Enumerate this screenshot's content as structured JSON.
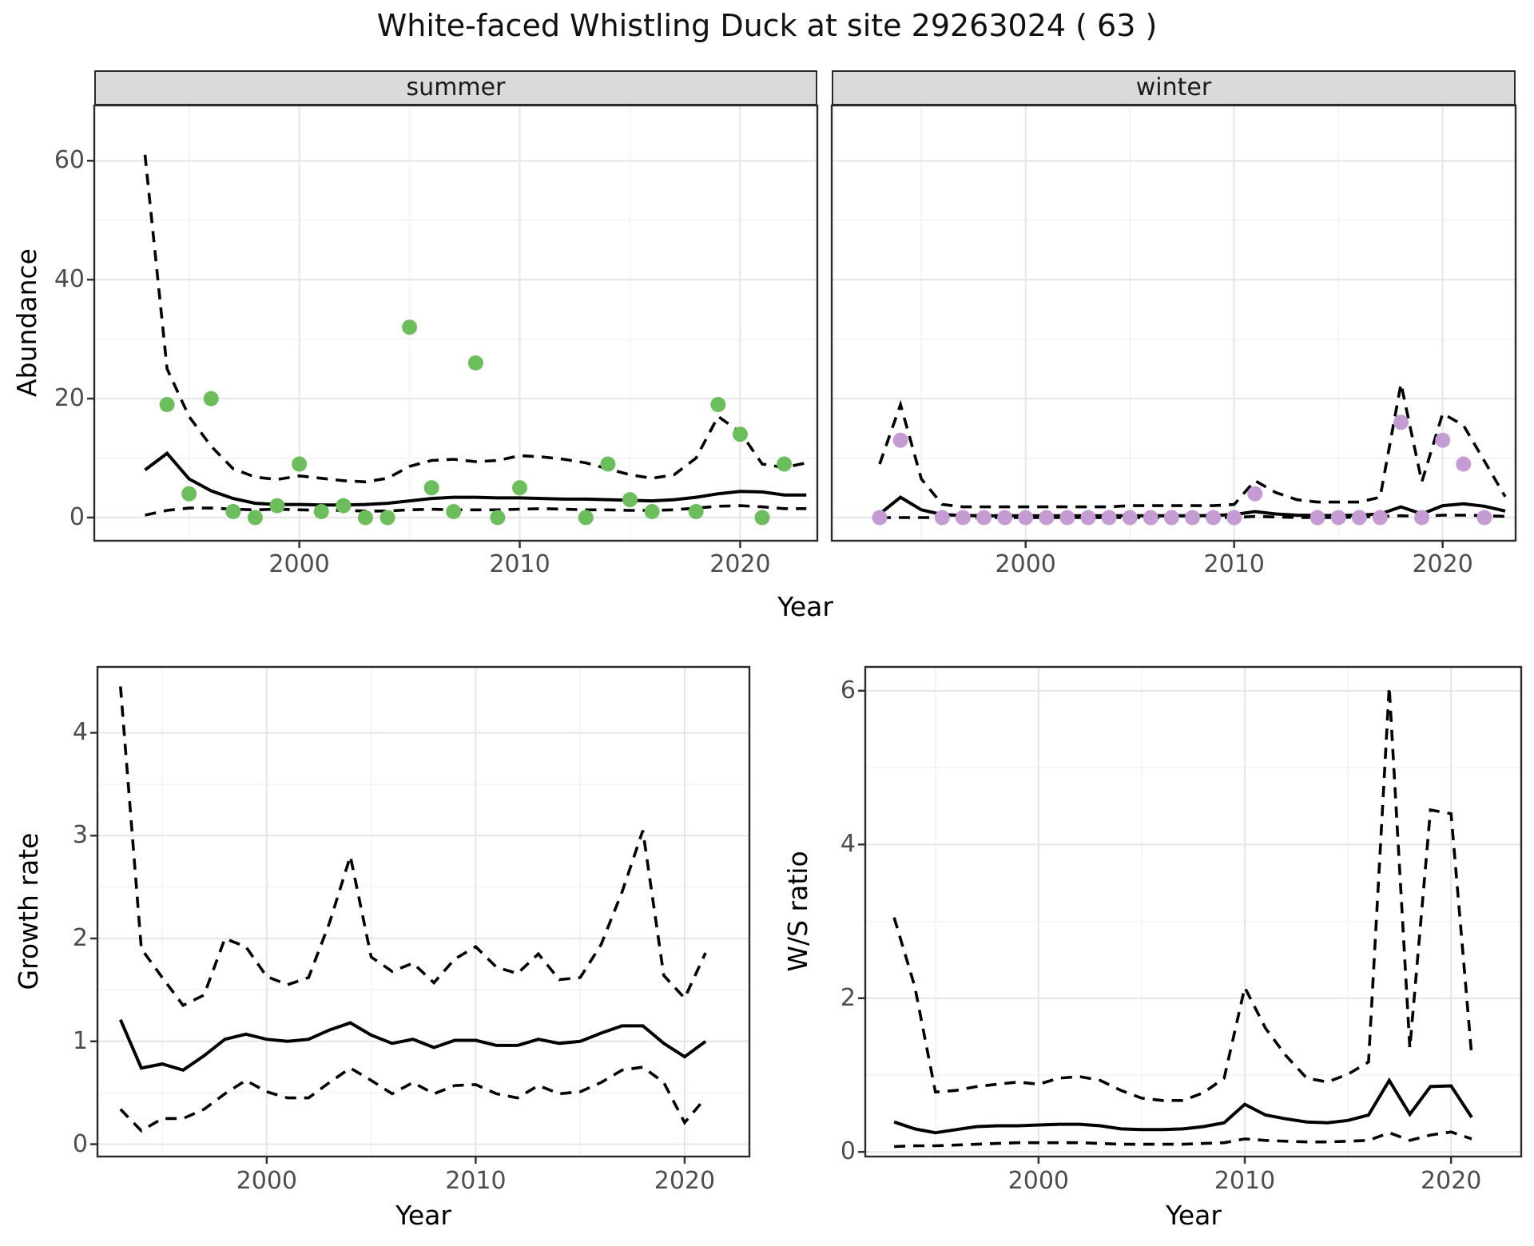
{
  "title": "White-faced Whistling Duck at site 29263024 ( 63 )",
  "top_row_xlabel": "Year",
  "colors": {
    "summer_point": "#6cbd5b",
    "winter_point": "#c49bd3",
    "line": "#000000",
    "grid_major": "#e7e7e7",
    "grid_minor": "#f2f2f2",
    "panel_border": "#2b2b2b",
    "strip_background": "#dadada",
    "tick_label": "#4d4d4d"
  },
  "chart_data": [
    {
      "id": "abundance-summer",
      "type": "scatter",
      "facet_label": "summer",
      "ylabel": "Abundance",
      "xlabel": "Year",
      "xlim": [
        1990.7,
        2023.5
      ],
      "ylim": [
        -3.9,
        69.3
      ],
      "xticks": [
        2000,
        2010,
        2020
      ],
      "yticks": [
        0,
        20,
        40,
        60
      ],
      "xminor": [
        1995,
        2005,
        2015
      ],
      "yminor": [
        10,
        30,
        50
      ],
      "grid": true,
      "legend": "none",
      "point_color": "#6cbd5b",
      "observed_points": [
        [
          1994,
          19
        ],
        [
          1995,
          4
        ],
        [
          1996,
          20
        ],
        [
          1997,
          1
        ],
        [
          1998,
          0
        ],
        [
          1999,
          2
        ],
        [
          2000,
          9
        ],
        [
          2001,
          1
        ],
        [
          2002,
          2
        ],
        [
          2003,
          0
        ],
        [
          2004,
          0
        ],
        [
          2005,
          32
        ],
        [
          2006,
          5
        ],
        [
          2007,
          1
        ],
        [
          2008,
          26
        ],
        [
          2009,
          0
        ],
        [
          2010,
          5
        ],
        [
          2013,
          0
        ],
        [
          2014,
          9
        ],
        [
          2015,
          3
        ],
        [
          2016,
          1
        ],
        [
          2018,
          1
        ],
        [
          2019,
          19
        ],
        [
          2020,
          14
        ],
        [
          2021,
          0
        ],
        [
          2022,
          9
        ]
      ],
      "line_years": [
        1993,
        1994,
        1995,
        1996,
        1997,
        1998,
        1999,
        2000,
        2001,
        2002,
        2003,
        2004,
        2005,
        2006,
        2007,
        2008,
        2009,
        2010,
        2011,
        2012,
        2013,
        2014,
        2015,
        2016,
        2017,
        2018,
        2019,
        2020,
        2021,
        2022,
        2023
      ],
      "series": [
        {
          "name": "mean",
          "style": "solid",
          "values": [
            8.0,
            10.8,
            6.5,
            4.5,
            3.2,
            2.4,
            2.2,
            2.2,
            2.1,
            2.1,
            2.2,
            2.4,
            2.8,
            3.2,
            3.4,
            3.4,
            3.3,
            3.3,
            3.2,
            3.1,
            3.1,
            3.0,
            2.9,
            2.8,
            3.0,
            3.4,
            4.0,
            4.4,
            4.3,
            3.8,
            3.8
          ]
        },
        {
          "name": "upper_ci",
          "style": "dashed",
          "values": [
            61,
            25,
            17,
            12,
            8.2,
            6.8,
            6.4,
            7.0,
            6.6,
            6.2,
            6.0,
            6.6,
            8.6,
            9.6,
            9.8,
            9.4,
            9.6,
            10.4,
            10.2,
            9.8,
            9.2,
            8.2,
            7.2,
            6.6,
            7.2,
            10.0,
            17.0,
            14.4,
            9.0,
            8.4,
            9.2
          ]
        },
        {
          "name": "lower_ci",
          "style": "dashed",
          "values": [
            0.4,
            1.2,
            1.6,
            1.6,
            1.4,
            1.3,
            1.4,
            1.3,
            1.2,
            1.2,
            1.1,
            1.1,
            1.3,
            1.4,
            1.3,
            1.3,
            1.3,
            1.4,
            1.5,
            1.4,
            1.3,
            1.3,
            1.2,
            1.2,
            1.3,
            1.6,
            1.9,
            2.0,
            1.8,
            1.5,
            1.5
          ]
        }
      ]
    },
    {
      "id": "abundance-winter",
      "type": "scatter",
      "facet_label": "winter",
      "ylabel": "Abundance",
      "xlabel": "Year",
      "xlim": [
        1990.7,
        2023.5
      ],
      "ylim": [
        -3.9,
        69.3
      ],
      "xticks": [
        2000,
        2010,
        2020
      ],
      "yticks": [
        0,
        20,
        40,
        60
      ],
      "xminor": [
        1995,
        2005,
        2015
      ],
      "yminor": [
        10,
        30,
        50
      ],
      "grid": true,
      "legend": "none",
      "point_color": "#c49bd3",
      "observed_points": [
        [
          1993,
          0
        ],
        [
          1994,
          13
        ],
        [
          1996,
          0
        ],
        [
          1997,
          0
        ],
        [
          1998,
          0
        ],
        [
          1999,
          0
        ],
        [
          2000,
          0
        ],
        [
          2001,
          0
        ],
        [
          2002,
          0
        ],
        [
          2003,
          0
        ],
        [
          2004,
          0
        ],
        [
          2005,
          0
        ],
        [
          2006,
          0
        ],
        [
          2007,
          0
        ],
        [
          2008,
          0
        ],
        [
          2009,
          0
        ],
        [
          2010,
          0
        ],
        [
          2011,
          4
        ],
        [
          2014,
          0
        ],
        [
          2015,
          0
        ],
        [
          2016,
          0
        ],
        [
          2017,
          0
        ],
        [
          2018,
          16
        ],
        [
          2019,
          0
        ],
        [
          2020,
          13
        ],
        [
          2021,
          9
        ],
        [
          2022,
          0
        ]
      ],
      "line_years": [
        1993,
        1994,
        1995,
        1996,
        1997,
        1998,
        1999,
        2000,
        2001,
        2002,
        2003,
        2004,
        2005,
        2006,
        2007,
        2008,
        2009,
        2010,
        2011,
        2012,
        2013,
        2014,
        2015,
        2016,
        2017,
        2018,
        2019,
        2020,
        2021,
        2022,
        2023
      ],
      "series": [
        {
          "name": "mean",
          "style": "solid",
          "values": [
            0.6,
            3.4,
            1.3,
            0.5,
            0.35,
            0.3,
            0.3,
            0.3,
            0.3,
            0.3,
            0.3,
            0.3,
            0.3,
            0.3,
            0.3,
            0.3,
            0.35,
            0.5,
            1.0,
            0.6,
            0.4,
            0.35,
            0.35,
            0.4,
            0.6,
            1.8,
            0.6,
            2.0,
            2.3,
            1.9,
            1.1
          ]
        },
        {
          "name": "upper_ci",
          "style": "dashed",
          "values": [
            9.0,
            19.0,
            6.5,
            2.2,
            1.8,
            1.8,
            1.8,
            1.8,
            1.8,
            1.8,
            1.8,
            1.8,
            2.0,
            2.0,
            2.0,
            2.0,
            2.0,
            2.2,
            6.2,
            4.2,
            3.0,
            2.6,
            2.6,
            2.6,
            3.4,
            22.5,
            6.0,
            17.5,
            15.5,
            9.5,
            3.5
          ]
        },
        {
          "name": "lower_ci",
          "style": "dashed",
          "values": [
            0,
            0,
            0,
            0,
            0,
            0,
            0,
            0,
            0,
            0,
            0,
            0,
            0,
            0,
            0,
            0,
            0,
            0,
            0.2,
            0.1,
            0,
            0,
            0,
            0.1,
            0.2,
            0.3,
            0.2,
            0.4,
            0.4,
            0.3,
            0.2
          ]
        }
      ]
    },
    {
      "id": "growth-rate",
      "type": "line",
      "facet_label": "",
      "ylabel": "Growth rate",
      "xlabel": "Year",
      "xlim": [
        1991.9,
        2023.1
      ],
      "ylim": [
        -0.12,
        4.64
      ],
      "xticks": [
        2000,
        2010,
        2020
      ],
      "yticks": [
        0,
        1,
        2,
        3,
        4
      ],
      "xminor": [
        1995,
        2005,
        2015
      ],
      "yminor": [
        0.5,
        1.5,
        2.5,
        3.5
      ],
      "grid": true,
      "legend": "none",
      "observed_points": [],
      "line_years": [
        1993,
        1994,
        1995,
        1996,
        1997,
        1998,
        1999,
        2000,
        2001,
        2002,
        2003,
        2004,
        2005,
        2006,
        2007,
        2008,
        2009,
        2010,
        2011,
        2012,
        2013,
        2014,
        2015,
        2016,
        2017,
        2018,
        2019,
        2020,
        2021
      ],
      "series": [
        {
          "name": "mean",
          "style": "solid",
          "values": [
            1.21,
            0.74,
            0.78,
            0.72,
            0.86,
            1.02,
            1.07,
            1.02,
            1.0,
            1.02,
            1.11,
            1.18,
            1.06,
            0.98,
            1.02,
            0.94,
            1.01,
            1.01,
            0.96,
            0.96,
            1.02,
            0.98,
            1.0,
            1.08,
            1.15,
            1.15,
            0.98,
            0.85,
            1.0
          ]
        },
        {
          "name": "upper_ci",
          "style": "dashed",
          "values": [
            4.45,
            1.9,
            1.62,
            1.35,
            1.45,
            2.0,
            1.92,
            1.63,
            1.55,
            1.62,
            2.15,
            2.8,
            1.82,
            1.68,
            1.76,
            1.57,
            1.8,
            1.92,
            1.72,
            1.66,
            1.85,
            1.6,
            1.62,
            1.94,
            2.45,
            3.05,
            1.64,
            1.42,
            1.86
          ]
        },
        {
          "name": "lower_ci",
          "style": "dashed",
          "values": [
            0.34,
            0.13,
            0.25,
            0.25,
            0.34,
            0.49,
            0.62,
            0.51,
            0.45,
            0.45,
            0.6,
            0.74,
            0.62,
            0.49,
            0.6,
            0.49,
            0.57,
            0.58,
            0.49,
            0.45,
            0.57,
            0.49,
            0.51,
            0.6,
            0.72,
            0.75,
            0.6,
            0.21,
            0.45
          ]
        }
      ]
    },
    {
      "id": "ws-ratio",
      "type": "line",
      "facet_label": "",
      "ylabel": "W/S ratio",
      "xlabel": "Year",
      "xlim": [
        1991.6,
        2023.4
      ],
      "ylim": [
        -0.06,
        6.31
      ],
      "xticks": [
        2000,
        2010,
        2020
      ],
      "yticks": [
        0,
        2,
        4,
        6
      ],
      "xminor": [
        1995,
        2005,
        2015
      ],
      "yminor": [
        1,
        3,
        5
      ],
      "grid": true,
      "legend": "none",
      "observed_points": [],
      "line_years": [
        1993,
        1994,
        1995,
        1996,
        1997,
        1998,
        1999,
        2000,
        2001,
        2002,
        2003,
        2004,
        2005,
        2006,
        2007,
        2008,
        2009,
        2010,
        2011,
        2012,
        2013,
        2014,
        2015,
        2016,
        2017,
        2018,
        2019,
        2020,
        2021
      ],
      "series": [
        {
          "name": "mean",
          "style": "solid",
          "values": [
            0.39,
            0.3,
            0.25,
            0.29,
            0.33,
            0.34,
            0.34,
            0.35,
            0.36,
            0.36,
            0.34,
            0.3,
            0.29,
            0.29,
            0.3,
            0.33,
            0.38,
            0.62,
            0.48,
            0.43,
            0.39,
            0.38,
            0.41,
            0.48,
            0.93,
            0.49,
            0.85,
            0.86,
            0.45
          ]
        },
        {
          "name": "upper_ci",
          "style": "dashed",
          "values": [
            3.05,
            2.15,
            0.78,
            0.8,
            0.85,
            0.88,
            0.91,
            0.88,
            0.96,
            0.98,
            0.93,
            0.8,
            0.7,
            0.67,
            0.67,
            0.77,
            0.96,
            2.14,
            1.61,
            1.25,
            0.96,
            0.91,
            1.01,
            1.17,
            6.05,
            1.35,
            4.45,
            4.4,
            1.25
          ]
        },
        {
          "name": "lower_ci",
          "style": "dashed",
          "values": [
            0.07,
            0.08,
            0.08,
            0.09,
            0.1,
            0.11,
            0.12,
            0.12,
            0.12,
            0.12,
            0.11,
            0.1,
            0.1,
            0.1,
            0.1,
            0.11,
            0.12,
            0.17,
            0.15,
            0.14,
            0.13,
            0.13,
            0.14,
            0.15,
            0.25,
            0.15,
            0.22,
            0.26,
            0.17
          ]
        }
      ]
    }
  ]
}
